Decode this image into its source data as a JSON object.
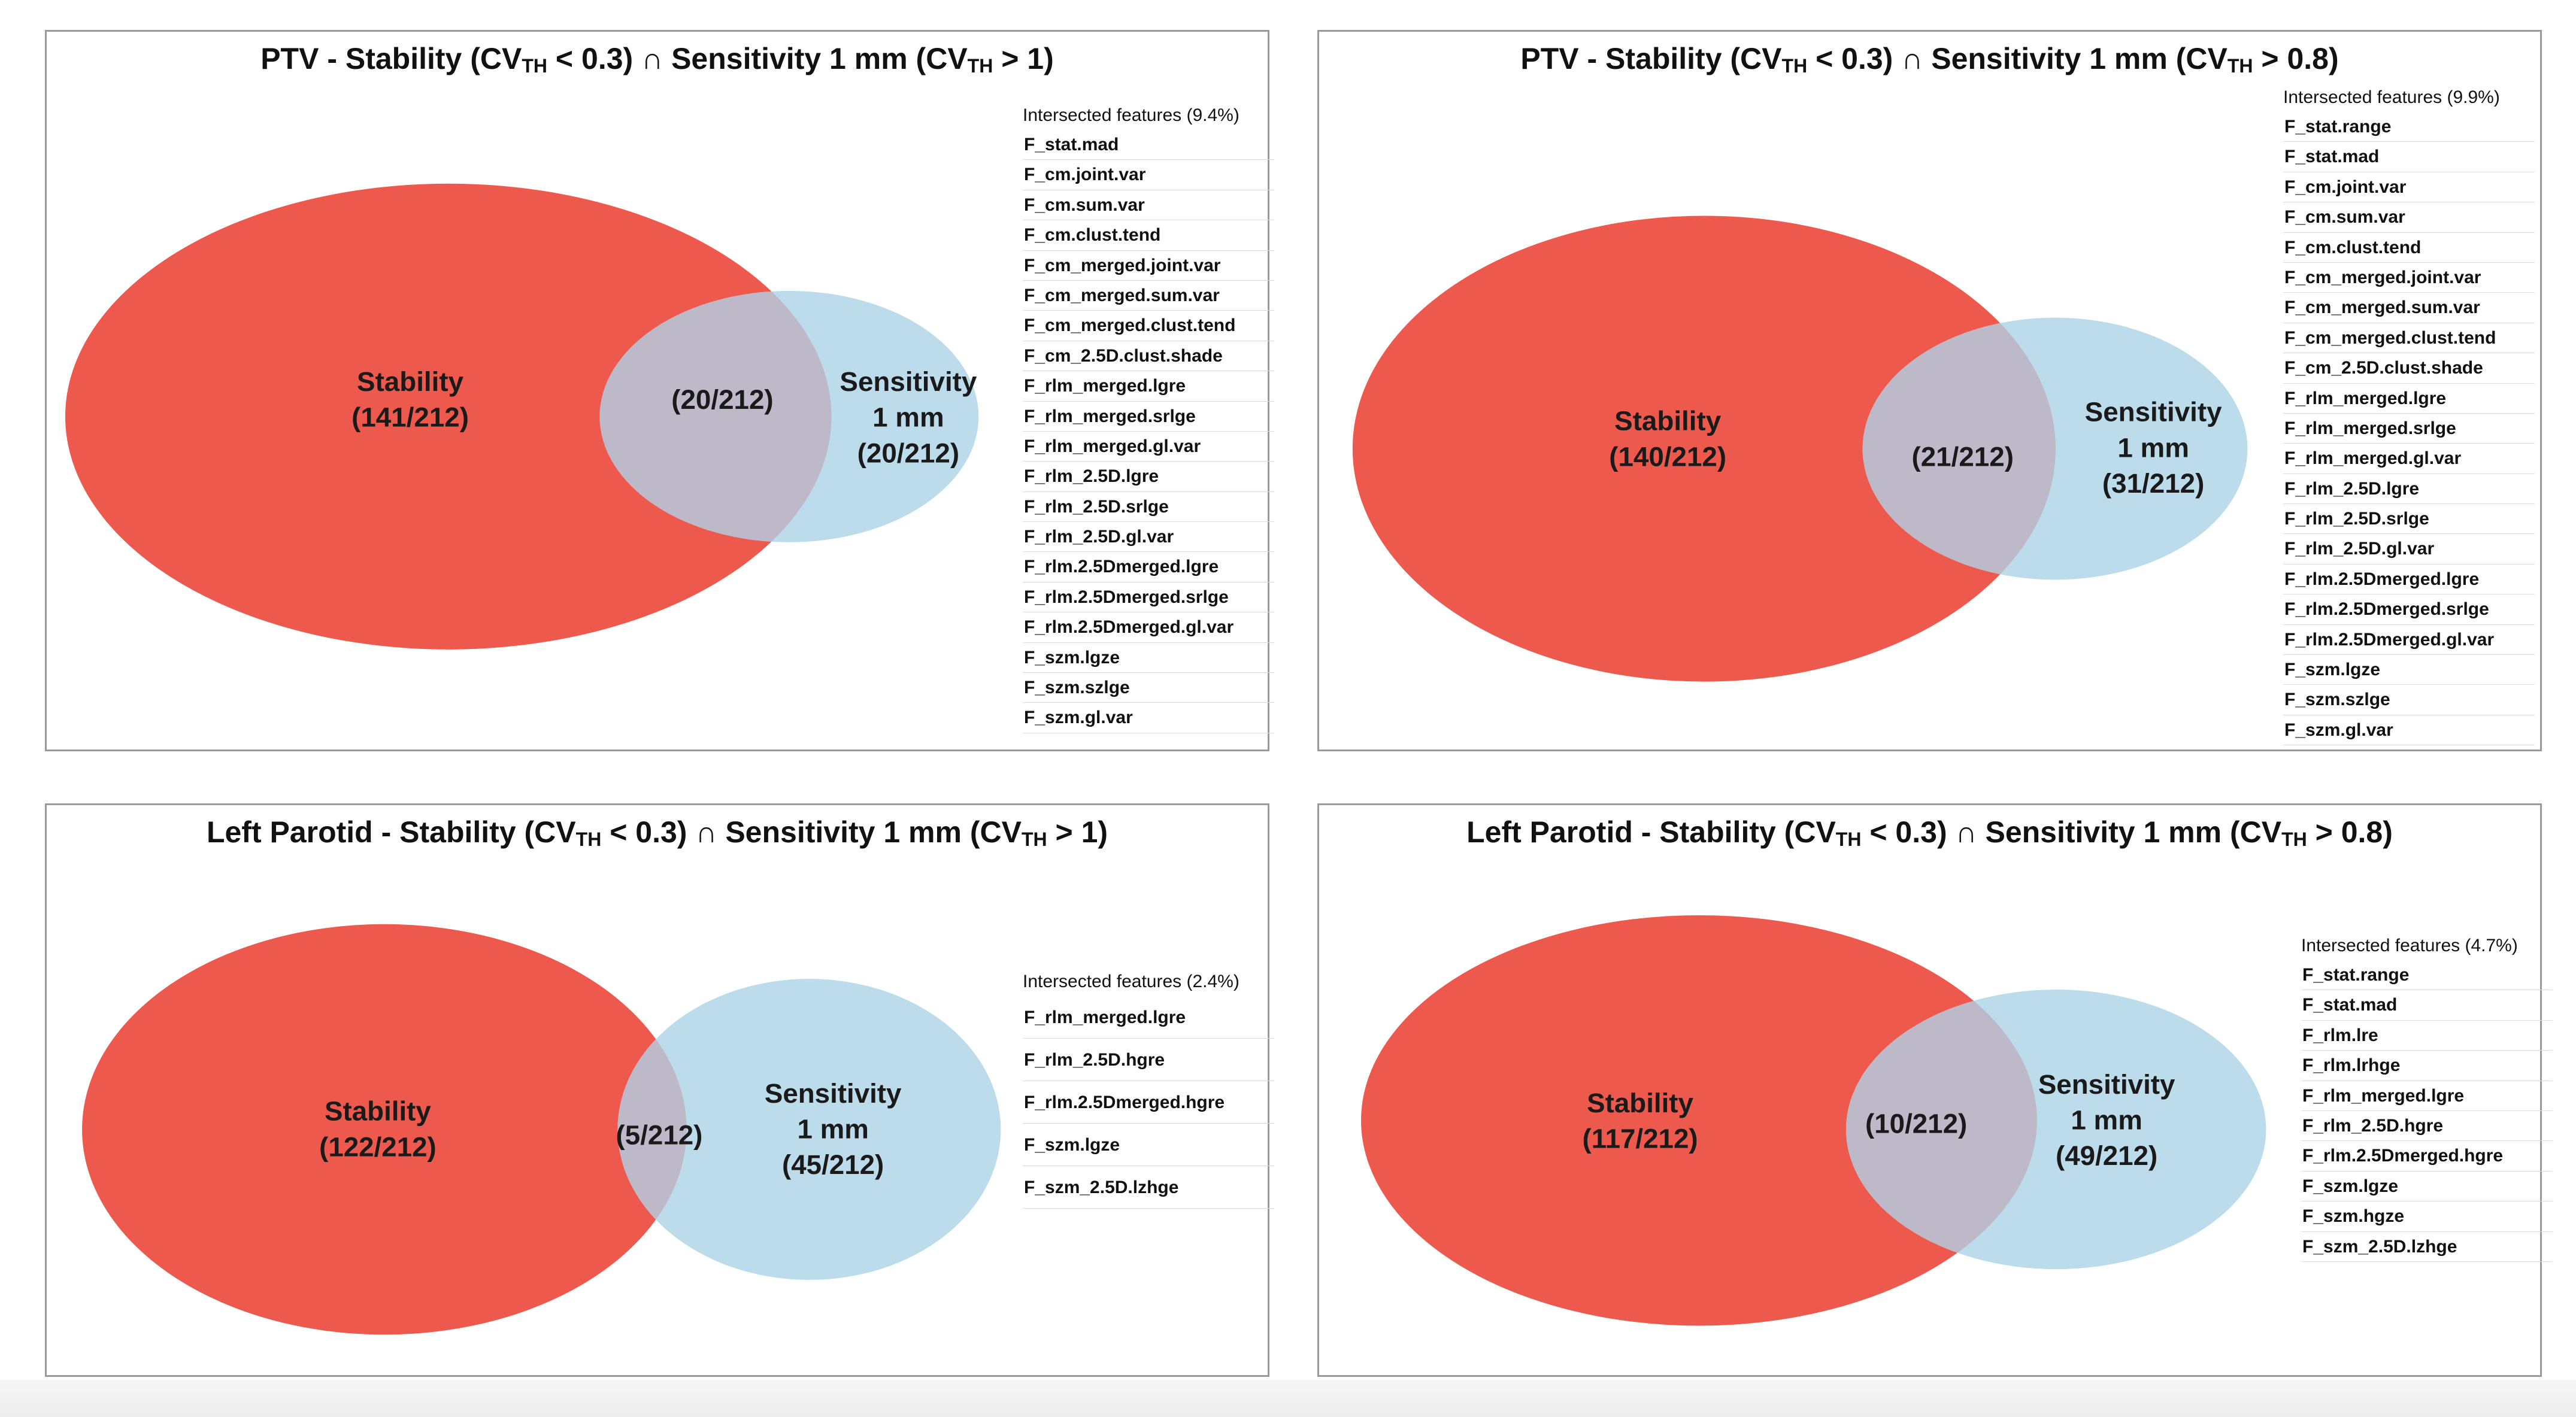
{
  "colors": {
    "stability": "#ed5a4d",
    "sensitivity": "#bcdcec",
    "intersection": "#bdb9c8",
    "border": "#9a9a9a"
  },
  "panels": [
    {
      "title": {
        "pre": "PTV - Stability (CV",
        "sub1": "TH",
        "mid": " < 0.3) ∩ Sensitivity 1 mm (CV",
        "sub2": "TH",
        "post": " > 1)"
      },
      "stability": {
        "label": "Stability",
        "count": "(141/212)"
      },
      "intersection": "(20/212)",
      "sensitivity": {
        "label": "Sensitivity",
        "label2": "1 mm",
        "count": "(20/212)"
      },
      "features_header": "Intersected features (9.4%)",
      "features": [
        "F_stat.mad",
        "F_cm.joint.var",
        "F_cm.sum.var",
        "F_cm.clust.tend",
        "F_cm_merged.joint.var",
        "F_cm_merged.sum.var",
        "F_cm_merged.clust.tend",
        "F_cm_2.5D.clust.shade",
        "F_rlm_merged.lgre",
        "F_rlm_merged.srlge",
        "F_rlm_merged.gl.var",
        "F_rlm_2.5D.lgre",
        "F_rlm_2.5D.srlge",
        "F_rlm_2.5D.gl.var",
        "F_rlm.2.5Dmerged.lgre",
        "F_rlm.2.5Dmerged.srlge",
        "F_rlm.2.5Dmerged.gl.var",
        "F_szm.lgze",
        "F_szm.szlge",
        "F_szm.gl.var"
      ]
    },
    {
      "title": {
        "pre": "PTV - Stability (CV",
        "sub1": "TH",
        "mid": " < 0.3) ∩ Sensitivity 1 mm (CV",
        "sub2": "TH",
        "post": " > 0.8)"
      },
      "stability": {
        "label": "Stability",
        "count": "(140/212)"
      },
      "intersection": "(21/212)",
      "sensitivity": {
        "label": "Sensitivity",
        "label2": "1 mm",
        "count": "(31/212)"
      },
      "features_header": "Intersected features (9.9%)",
      "features": [
        "F_stat.range",
        "F_stat.mad",
        "F_cm.joint.var",
        "F_cm.sum.var",
        "F_cm.clust.tend",
        "F_cm_merged.joint.var",
        "F_cm_merged.sum.var",
        "F_cm_merged.clust.tend",
        "F_cm_2.5D.clust.shade",
        "F_rlm_merged.lgre",
        "F_rlm_merged.srlge",
        "F_rlm_merged.gl.var",
        "F_rlm_2.5D.lgre",
        "F_rlm_2.5D.srlge",
        "F_rlm_2.5D.gl.var",
        "F_rlm.2.5Dmerged.lgre",
        "F_rlm.2.5Dmerged.srlge",
        "F_rlm.2.5Dmerged.gl.var",
        "F_szm.lgze",
        "F_szm.szlge",
        "F_szm.gl.var"
      ]
    },
    {
      "title": {
        "pre": "Left Parotid - Stability (CV",
        "sub1": "TH",
        "mid": " < 0.3) ∩ Sensitivity 1 mm (CV",
        "sub2": "TH",
        "post": " > 1)"
      },
      "stability": {
        "label": "Stability",
        "count": "(122/212)"
      },
      "intersection": "(5/212)",
      "sensitivity": {
        "label": "Sensitivity",
        "label2": "1 mm",
        "count": "(45/212)"
      },
      "features_header": "Intersected features (2.4%)",
      "features": [
        "F_rlm_merged.lgre",
        "F_rlm_2.5D.hgre",
        "F_rlm.2.5Dmerged.hgre",
        "F_szm.lgze",
        "F_szm_2.5D.lzhge"
      ]
    },
    {
      "title": {
        "pre": "Left Parotid - Stability (CV",
        "sub1": "TH",
        "mid": " < 0.3) ∩ Sensitivity 1 mm (CV",
        "sub2": "TH",
        "post": " > 0.8)"
      },
      "stability": {
        "label": "Stability",
        "count": "(117/212)"
      },
      "intersection": "(10/212)",
      "sensitivity": {
        "label": "Sensitivity",
        "label2": "1 mm",
        "count": "(49/212)"
      },
      "features_header": "Intersected features (4.7%)",
      "features": [
        "F_stat.range",
        "F_stat.mad",
        "F_rlm.lre",
        "F_rlm.lrhge",
        "F_rlm_merged.lgre",
        "F_rlm_2.5D.hgre",
        "F_rlm.2.5Dmerged.hgre",
        "F_szm.lgze",
        "F_szm.hgze",
        "F_szm_2.5D.lzhge"
      ]
    }
  ]
}
